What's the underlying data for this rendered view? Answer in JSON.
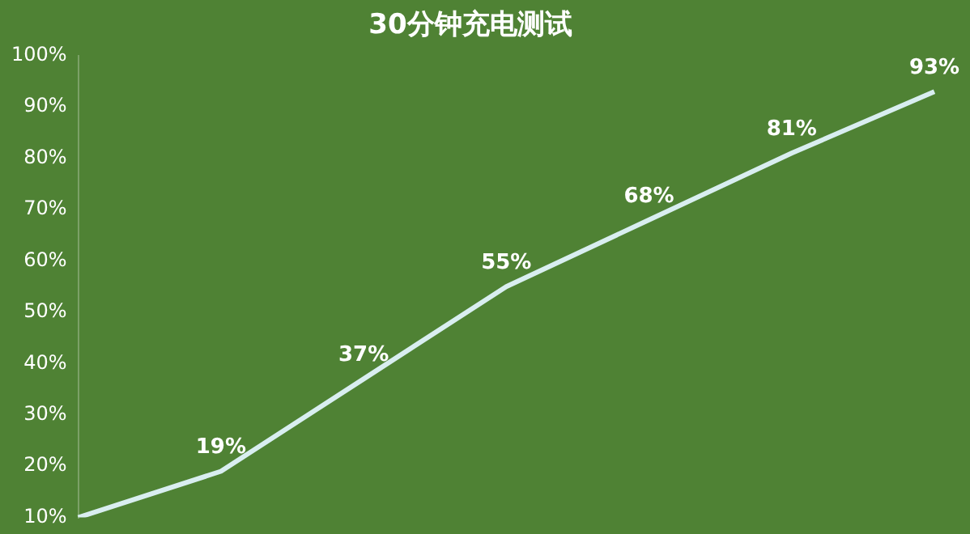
{
  "chart_data": {
    "type": "line",
    "title": "30分钟充电测试",
    "categories": [
      null,
      null,
      null,
      null,
      null,
      null,
      null
    ],
    "series": [
      {
        "color": "#d9eef0",
        "values": [
          10,
          19,
          37,
          55,
          68,
          81,
          93
        ]
      }
    ],
    "value_labels": [
      null,
      "19%",
      "37%",
      "55%",
      "68%",
      "81%",
      "93%"
    ],
    "ylim": [
      10,
      100
    ],
    "yticks": [
      {
        "value": 10,
        "label": "10%"
      },
      {
        "value": 20,
        "label": "20%"
      },
      {
        "value": 30,
        "label": "30%"
      },
      {
        "value": 40,
        "label": "40%"
      },
      {
        "value": 50,
        "label": "50%"
      },
      {
        "value": 60,
        "label": "60%"
      },
      {
        "value": 70,
        "label": "70%"
      },
      {
        "value": 80,
        "label": "80%"
      },
      {
        "value": 90,
        "label": "90%"
      },
      {
        "value": 100,
        "label": "100%"
      }
    ],
    "grid": false,
    "legend": false,
    "marker": "none",
    "line_style": "solid",
    "tick_labels": "y"
  }
}
